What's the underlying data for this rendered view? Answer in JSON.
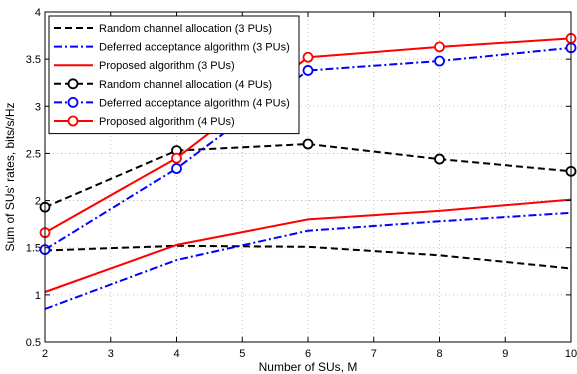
{
  "chart_data": {
    "type": "line",
    "title": "",
    "xlabel": "Number of SUs, M",
    "ylabel": "Sum of SUs' rates, bits/s/Hz",
    "xlim": [
      2,
      10
    ],
    "ylim": [
      0.5,
      4
    ],
    "xticks": [
      2,
      3,
      4,
      5,
      6,
      7,
      8,
      9,
      10
    ],
    "yticks": [
      0.5,
      1,
      1.5,
      2,
      2.5,
      3,
      3.5,
      4
    ],
    "xtick_labels": [
      "2",
      "3",
      "4",
      "5",
      "6",
      "7",
      "8",
      "9",
      "10"
    ],
    "ytick_labels": [
      "0.5",
      "1",
      "1.5",
      "2",
      "2.5",
      "3",
      "3.5",
      "4"
    ],
    "grid": true,
    "legend_position": "top-left",
    "series": [
      {
        "name": "Random channel allocation (3 PUs)",
        "color": "#000000",
        "dash": "dashed",
        "marker": "none",
        "x": [
          2,
          4,
          6,
          8,
          10
        ],
        "y": [
          1.47,
          1.52,
          1.51,
          1.42,
          1.28
        ]
      },
      {
        "name": "Deferred acceptance algorithm (3 PUs)",
        "color": "#0000ff",
        "dash": "dashdot",
        "marker": "none",
        "x": [
          2,
          4,
          6,
          8,
          10
        ],
        "y": [
          0.85,
          1.37,
          1.68,
          1.78,
          1.87
        ]
      },
      {
        "name": "Proposed algorithm (3 PUs)",
        "color": "#ff0000",
        "dash": "solid",
        "marker": "none",
        "x": [
          2,
          4,
          6,
          8,
          10
        ],
        "y": [
          1.03,
          1.53,
          1.8,
          1.89,
          2.01
        ]
      },
      {
        "name": "Random channel allocation (4 PUs)",
        "color": "#000000",
        "dash": "dashed",
        "marker": "circle",
        "x": [
          2,
          4,
          6,
          8,
          10
        ],
        "y": [
          1.93,
          2.53,
          2.6,
          2.44,
          2.31
        ]
      },
      {
        "name": "Deferred acceptance algorithm (4 PUs)",
        "color": "#0000ff",
        "dash": "dashdot",
        "marker": "circle",
        "x": [
          2,
          4,
          6,
          8,
          10
        ],
        "y": [
          1.48,
          2.34,
          3.38,
          3.48,
          3.62
        ]
      },
      {
        "name": "Proposed algorithm (4 PUs)",
        "color": "#ff0000",
        "dash": "solid",
        "marker": "circle",
        "x": [
          2,
          4,
          6,
          8,
          10
        ],
        "y": [
          1.66,
          2.45,
          3.52,
          3.63,
          3.72
        ]
      }
    ]
  }
}
